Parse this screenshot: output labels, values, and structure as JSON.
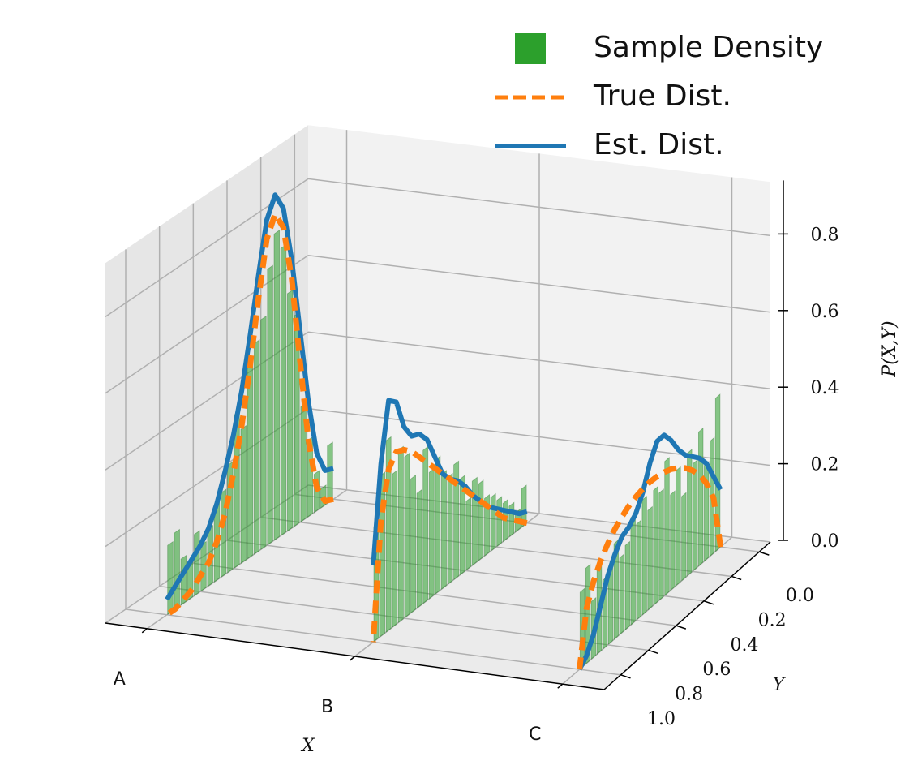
{
  "chart_data": {
    "type": "bar3d",
    "categories": [
      "A",
      "B",
      "C"
    ],
    "x_label": "X",
    "y_label": "Y",
    "z_label": "P(X,Y)",
    "xlim": [
      -0.2,
      2.2
    ],
    "ylim": [
      -0.08,
      1.12
    ],
    "zlim": [
      0,
      0.94
    ],
    "yticks": [
      {
        "value": 0,
        "label": "0.0"
      },
      0.2,
      0.4,
      0.6,
      0.8,
      {
        "value": 1,
        "label": "1.0"
      }
    ],
    "zticks": [
      {
        "value": 0,
        "label": "0.0"
      },
      0.2,
      0.4,
      0.6,
      0.8
    ],
    "grid": true,
    "legend": "upper right",
    "y": [
      0,
      0.05,
      0.1,
      0.15,
      0.2,
      0.25,
      0.3,
      0.35,
      0.4,
      0.45,
      0.5,
      0.55,
      0.6,
      0.65,
      0.7,
      0.75,
      0.8,
      0.85,
      0.9,
      0.95,
      1
    ],
    "series": [
      {
        "name": "Sample Density",
        "kind": "bar",
        "color": "#2ca02c",
        "y": [
          0.02,
          0.06,
          0.1,
          0.14,
          0.18,
          0.22,
          0.26,
          0.3,
          0.34,
          0.38,
          0.42,
          0.46,
          0.5,
          0.54,
          0.58,
          0.62,
          0.66,
          0.7,
          0.74,
          0.78,
          0.82,
          0.86,
          0.9,
          0.94,
          0.98
        ],
        "values": [
          [
            0.15,
            0.05,
            0.1,
            0.2,
            0.3,
            0.55,
            0.62,
            0.75,
            0.8,
            0.72,
            0.6,
            0.55,
            0.5,
            0.35,
            0.4,
            0.28,
            0.22,
            0.2,
            0.15,
            0.12,
            0.16,
            0.1,
            0.12,
            0.2,
            0.18
          ],
          [
            0.1,
            0.05,
            0.08,
            0.1,
            0.12,
            0.14,
            0.15,
            0.2,
            0.22,
            0.18,
            0.25,
            0.3,
            0.28,
            0.3,
            0.35,
            0.33,
            0.4,
            0.3,
            0.35,
            0.42,
            0.45,
            0.4,
            0.5,
            0.42,
            0.3
          ],
          [
            0.4,
            0.3,
            0.25,
            0.35,
            0.28,
            0.32,
            0.22,
            0.3,
            0.25,
            0.35,
            0.28,
            0.3,
            0.26,
            0.3,
            0.25,
            0.28,
            0.22,
            0.2,
            0.25,
            0.2,
            0.18,
            0.22,
            0.15,
            0.25,
            0.2
          ]
        ]
      },
      {
        "name": "True Dist.",
        "kind": "line",
        "linestyle": "dashed",
        "color": "#ff7f0e",
        "values": [
          [
            0,
            0.01,
            0.06,
            0.2,
            0.42,
            0.65,
            0.8,
            0.85,
            0.8,
            0.66,
            0.5,
            0.36,
            0.25,
            0.16,
            0.1,
            0.06,
            0.04,
            0.02,
            0.01,
            0,
            0
          ],
          [
            0,
            0.02,
            0.04,
            0.06,
            0.09,
            0.12,
            0.15,
            0.18,
            0.21,
            0.24,
            0.27,
            0.3,
            0.33,
            0.36,
            0.39,
            0.42,
            0.44,
            0.45,
            0.42,
            0.3,
            0
          ],
          [
            0,
            0.144,
            0.198,
            0.236,
            0.264,
            0.286,
            0.302,
            0.315,
            0.323,
            0.328,
            0.33,
            0.328,
            0.323,
            0.315,
            0.302,
            0.286,
            0.264,
            0.236,
            0.198,
            0.144,
            0
          ]
        ]
      },
      {
        "name": "Est. Dist.",
        "kind": "line",
        "linestyle": "solid",
        "color": "#1f77b4",
        "values": [
          [
            0.08,
            0.09,
            0.15,
            0.3,
            0.5,
            0.7,
            0.85,
            0.9,
            0.85,
            0.72,
            0.58,
            0.45,
            0.35,
            0.27,
            0.2,
            0.15,
            0.12,
            0.1,
            0.08,
            0.06,
            0.04
          ],
          [
            0.03,
            0.04,
            0.06,
            0.08,
            0.1,
            0.12,
            0.15,
            0.18,
            0.22,
            0.25,
            0.27,
            0.3,
            0.36,
            0.42,
            0.45,
            0.46,
            0.5,
            0.58,
            0.6,
            0.45,
            0.2
          ],
          [
            0.15,
            0.2,
            0.25,
            0.28,
            0.3,
            0.32,
            0.35,
            0.39,
            0.42,
            0.42,
            0.38,
            0.32,
            0.28,
            0.26,
            0.25,
            0.22,
            0.18,
            0.12,
            0.06,
            0.02,
            0
          ]
        ]
      }
    ]
  }
}
